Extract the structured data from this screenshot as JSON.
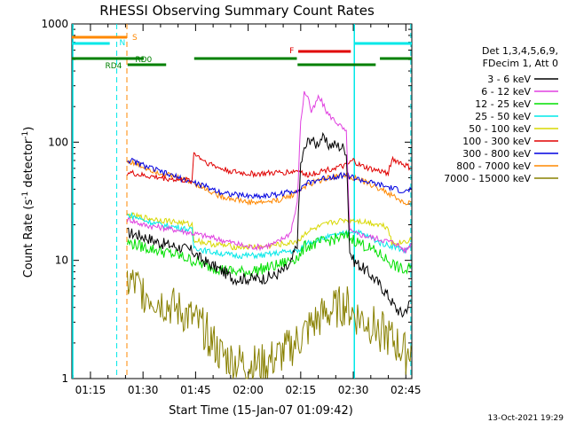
{
  "chart_data": {
    "type": "line",
    "title": "RHESSI Observing Summary Count Rates",
    "xlabel": "Start Time (15-Jan-07 01:09:42)",
    "ylabel_main": "Count Rate (s",
    "ylabel_sup1": "-1",
    "ylabel_mid": " detector",
    "ylabel_sup2": "-1",
    "ylabel_end": ")",
    "y_scale": "log",
    "ylim": [
      1,
      1000
    ],
    "xlim_minutes": [
      69.7,
      166.7
    ],
    "x_ticks": [
      {
        "t": 75,
        "label": "01:15"
      },
      {
        "t": 90,
        "label": "01:30"
      },
      {
        "t": 105,
        "label": "01:45"
      },
      {
        "t": 120,
        "label": "02:00"
      },
      {
        "t": 135,
        "label": "02:15"
      },
      {
        "t": 150,
        "label": "02:30"
      },
      {
        "t": 165,
        "label": "02:45"
      }
    ],
    "y_ticks": [
      {
        "v": 1,
        "label": "1"
      },
      {
        "v": 10,
        "label": "10"
      },
      {
        "v": 100,
        "label": "100"
      },
      {
        "v": 1000,
        "label": "1000"
      }
    ],
    "legend_header": [
      "Det 1,3,4,5,6,9,",
      "FDecim 1, Att 0"
    ],
    "legend_placement": "right",
    "series": [
      {
        "name": "3 - 6 keV",
        "color": "#000000",
        "points": [
          [
            85.5,
            17
          ],
          [
            86.5,
            17
          ],
          [
            90,
            16
          ],
          [
            95,
            14
          ],
          [
            100,
            13
          ],
          [
            104,
            12
          ],
          [
            107,
            10
          ],
          [
            110,
            9
          ],
          [
            113,
            8
          ],
          [
            116,
            7
          ],
          [
            120,
            7
          ],
          [
            124,
            7
          ],
          [
            128,
            7.5
          ],
          [
            132,
            9
          ],
          [
            134,
            14
          ],
          [
            135,
            65
          ],
          [
            136,
            85
          ],
          [
            137,
            100
          ],
          [
            138,
            110
          ],
          [
            139,
            95
          ],
          [
            140,
            100
          ],
          [
            141,
            110
          ],
          [
            142,
            100
          ],
          [
            143,
            95
          ],
          [
            144,
            95
          ],
          [
            145,
            95
          ],
          [
            146,
            92
          ],
          [
            147,
            90
          ],
          [
            148,
            85
          ],
          [
            149,
            12
          ],
          [
            150,
            10
          ],
          [
            152,
            9
          ],
          [
            154,
            8
          ],
          [
            156,
            7
          ],
          [
            158,
            6
          ],
          [
            160,
            5
          ],
          [
            162,
            4
          ],
          [
            164,
            3.5
          ],
          [
            166.5,
            4.5
          ]
        ]
      },
      {
        "name": "6 - 12 keV",
        "color": "#e040e0",
        "points": [
          [
            85.5,
            22
          ],
          [
            86.5,
            22
          ],
          [
            90,
            20
          ],
          [
            95,
            19
          ],
          [
            100,
            18
          ],
          [
            104,
            17
          ],
          [
            108,
            16
          ],
          [
            112,
            15
          ],
          [
            116,
            14
          ],
          [
            120,
            13
          ],
          [
            124,
            13
          ],
          [
            128,
            14
          ],
          [
            132,
            17
          ],
          [
            134,
            30
          ],
          [
            135,
            150
          ],
          [
            136,
            260
          ],
          [
            137,
            250
          ],
          [
            138,
            180
          ],
          [
            139,
            200
          ],
          [
            140,
            240
          ],
          [
            141,
            220
          ],
          [
            142,
            190
          ],
          [
            143,
            170
          ],
          [
            144,
            160
          ],
          [
            145,
            150
          ],
          [
            146,
            140
          ],
          [
            147,
            130
          ],
          [
            148,
            120
          ],
          [
            149,
            18
          ],
          [
            150,
            17
          ],
          [
            154,
            16
          ],
          [
            158,
            15
          ],
          [
            162,
            14
          ],
          [
            165,
            12
          ],
          [
            166.5,
            14
          ]
        ]
      },
      {
        "name": "12 - 25 keV",
        "color": "#00e000",
        "points": [
          [
            85.5,
            14
          ],
          [
            86.5,
            14
          ],
          [
            90,
            13
          ],
          [
            95,
            12
          ],
          [
            100,
            11
          ],
          [
            104,
            10
          ],
          [
            108,
            9
          ],
          [
            112,
            8.5
          ],
          [
            116,
            8
          ],
          [
            120,
            8
          ],
          [
            124,
            8.5
          ],
          [
            128,
            9
          ],
          [
            132,
            10
          ],
          [
            135,
            11
          ],
          [
            136,
            13
          ],
          [
            140,
            14
          ],
          [
            144,
            15
          ],
          [
            148,
            16
          ],
          [
            150,
            15
          ],
          [
            154,
            13
          ],
          [
            158,
            11
          ],
          [
            162,
            9
          ],
          [
            165,
            8
          ],
          [
            166.5,
            9
          ]
        ]
      },
      {
        "name": "25 - 50 keV",
        "color": "#00e8e8",
        "points": [
          [
            85.5,
            24
          ],
          [
            86.5,
            24
          ],
          [
            90,
            22
          ],
          [
            95,
            20
          ],
          [
            100,
            19
          ],
          [
            104,
            18
          ],
          [
            104.5,
            13
          ],
          [
            108,
            12
          ],
          [
            112,
            11.5
          ],
          [
            116,
            11
          ],
          [
            120,
            11
          ],
          [
            124,
            11
          ],
          [
            128,
            11.5
          ],
          [
            132,
            12
          ],
          [
            135,
            12
          ],
          [
            136,
            14
          ],
          [
            140,
            15
          ],
          [
            144,
            16
          ],
          [
            148,
            17
          ],
          [
            150,
            18
          ],
          [
            154,
            16
          ],
          [
            158,
            14
          ],
          [
            162,
            13
          ],
          [
            165,
            12
          ],
          [
            166.5,
            14
          ]
        ]
      },
      {
        "name": "50 - 100 keV",
        "color": "#d8d800",
        "points": [
          [
            85.5,
            24
          ],
          [
            86.5,
            24
          ],
          [
            90,
            23
          ],
          [
            95,
            22
          ],
          [
            100,
            21
          ],
          [
            104,
            20
          ],
          [
            104.5,
            15
          ],
          [
            108,
            14
          ],
          [
            112,
            13.5
          ],
          [
            116,
            13
          ],
          [
            120,
            13
          ],
          [
            124,
            13
          ],
          [
            128,
            13.5
          ],
          [
            132,
            14
          ],
          [
            135,
            15
          ],
          [
            136,
            17
          ],
          [
            140,
            19
          ],
          [
            144,
            21
          ],
          [
            148,
            22
          ],
          [
            150,
            22
          ],
          [
            154,
            21
          ],
          [
            158,
            20
          ],
          [
            160,
            19
          ],
          [
            161,
            14
          ],
          [
            163,
            14
          ],
          [
            166.5,
            15
          ]
        ]
      },
      {
        "name": "100 - 300 keV",
        "color": "#e00000",
        "points": [
          [
            85.5,
            55
          ],
          [
            86.5,
            55
          ],
          [
            90,
            52
          ],
          [
            95,
            50
          ],
          [
            100,
            48
          ],
          [
            104,
            47
          ],
          [
            104.5,
            82
          ],
          [
            106,
            75
          ],
          [
            108,
            68
          ],
          [
            112,
            60
          ],
          [
            116,
            56
          ],
          [
            120,
            54
          ],
          [
            124,
            54
          ],
          [
            128,
            55
          ],
          [
            132,
            56
          ],
          [
            135,
            58
          ],
          [
            136,
            52
          ],
          [
            140,
            56
          ],
          [
            144,
            60
          ],
          [
            148,
            63
          ],
          [
            150,
            70
          ],
          [
            152,
            63
          ],
          [
            156,
            58
          ],
          [
            160,
            55
          ],
          [
            161,
            72
          ],
          [
            163,
            68
          ],
          [
            166.5,
            60
          ]
        ]
      },
      {
        "name": "300 - 800 keV",
        "color": "#0000e0",
        "points": [
          [
            85.5,
            70
          ],
          [
            86.5,
            70
          ],
          [
            90,
            64
          ],
          [
            95,
            56
          ],
          [
            100,
            50
          ],
          [
            104,
            46
          ],
          [
            108,
            42
          ],
          [
            112,
            38
          ],
          [
            116,
            36
          ],
          [
            120,
            35
          ],
          [
            124,
            35
          ],
          [
            128,
            36
          ],
          [
            132,
            38
          ],
          [
            135,
            40
          ],
          [
            136,
            44
          ],
          [
            140,
            48
          ],
          [
            144,
            51
          ],
          [
            148,
            53
          ],
          [
            150,
            50
          ],
          [
            154,
            46
          ],
          [
            158,
            43
          ],
          [
            162,
            40
          ],
          [
            165,
            38
          ],
          [
            166.5,
            40
          ]
        ]
      },
      {
        "name": "800 - 7000 keV",
        "color": "#ff8800",
        "points": [
          [
            85.5,
            68
          ],
          [
            86.5,
            68
          ],
          [
            90,
            62
          ],
          [
            95,
            55
          ],
          [
            100,
            50
          ],
          [
            104,
            46
          ],
          [
            108,
            40
          ],
          [
            112,
            35
          ],
          [
            116,
            33
          ],
          [
            120,
            31
          ],
          [
            124,
            31
          ],
          [
            128,
            32
          ],
          [
            132,
            35
          ],
          [
            135,
            40
          ],
          [
            136,
            42
          ],
          [
            140,
            47
          ],
          [
            144,
            51
          ],
          [
            148,
            53
          ],
          [
            150,
            50
          ],
          [
            154,
            45
          ],
          [
            158,
            40
          ],
          [
            162,
            34
          ],
          [
            165,
            30
          ],
          [
            166.5,
            31
          ]
        ]
      },
      {
        "name": "7000 - 15000 keV",
        "color": "#888000",
        "points": [
          [
            85.5,
            6.5
          ],
          [
            86.5,
            6.5
          ],
          [
            90,
            5.5
          ],
          [
            95,
            4.5
          ],
          [
            100,
            3.8
          ],
          [
            104,
            3.2
          ],
          [
            108,
            2.5
          ],
          [
            110,
            2
          ],
          [
            112,
            1.6
          ],
          [
            116,
            1.4
          ],
          [
            120,
            1.3
          ],
          [
            124,
            1.3
          ],
          [
            128,
            1.5
          ],
          [
            132,
            1.8
          ],
          [
            135,
            2.2
          ],
          [
            138,
            2.8
          ],
          [
            142,
            3.5
          ],
          [
            146,
            4
          ],
          [
            148,
            4.2
          ],
          [
            150,
            3.5
          ],
          [
            154,
            3
          ],
          [
            158,
            2.5
          ],
          [
            162,
            2
          ],
          [
            165,
            1.6
          ],
          [
            166.5,
            1.9
          ]
        ]
      }
    ],
    "annotations": {
      "S_label": "S",
      "S_color": "#ff8800",
      "N_label": "N",
      "N_color": "#00e8e8",
      "F_label": "F",
      "F_color": "#e00000",
      "RD0_label": "RD0",
      "RD4_label": "RD4",
      "RD_color": "#008000"
    }
  },
  "footer_timestamp": "13-Oct-2021 19:29"
}
